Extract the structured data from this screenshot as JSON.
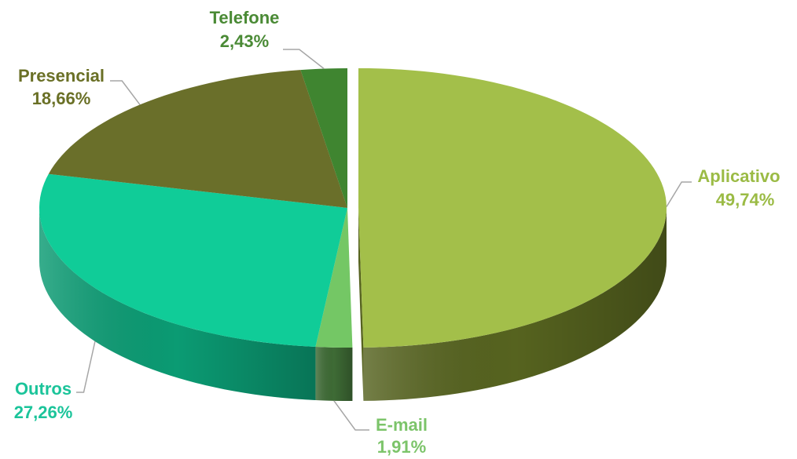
{
  "chart_data": {
    "type": "pie",
    "title": "",
    "slices": [
      {
        "name": "Aplicativo",
        "value": 49.74,
        "label": "49,74%",
        "color": "#a3bf4a",
        "side_color": "#56631f",
        "label_color": "#9bbb45",
        "exploded": true
      },
      {
        "name": "E-mail",
        "value": 1.91,
        "label": "1,91%",
        "color": "#74c765",
        "side_color": "#3e6b35",
        "label_color": "#7cc46a",
        "exploded": false
      },
      {
        "name": "Outros",
        "value": 27.26,
        "label": "27,26%",
        "color": "#10cc98",
        "side_color": "#0b9b73",
        "label_color": "#1bc49a",
        "exploded": false
      },
      {
        "name": "Presencial",
        "value": 18.66,
        "label": "18,66%",
        "color": "#6a6f2a",
        "side_color": "#454a18",
        "label_color": "#6a7026",
        "exploded": false
      },
      {
        "name": "Telefone",
        "value": 2.43,
        "label": "2,43%",
        "color": "#3f8530",
        "side_color": "#2a5a20",
        "label_color": "#4a8a35",
        "exploded": false
      }
    ],
    "legend": "none",
    "style": "3d-exploded-pie"
  }
}
